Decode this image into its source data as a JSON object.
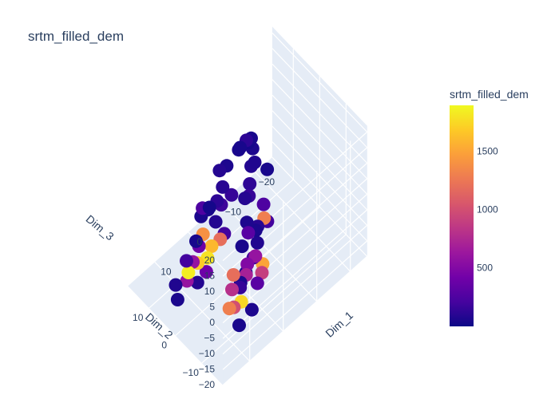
{
  "chart_data": {
    "type": "scatter3d",
    "title": "srtm_filled_dem",
    "colorbar": {
      "title": "srtm_filled_dem",
      "ticks": [
        "500",
        "1000",
        "1500"
      ],
      "tick_values": [
        500,
        1000,
        1500
      ],
      "range": [
        0,
        1900
      ],
      "colorscale": [
        "#0d0887",
        "#46039f",
        "#7201a8",
        "#9c179e",
        "#bd3786",
        "#d8576b",
        "#ed7953",
        "#fb9f3a",
        "#fdca26",
        "#f0f921"
      ]
    },
    "axes": {
      "x": {
        "title": "Dim_1",
        "ticks": [
          "−20",
          "−10",
          "0",
          "10"
        ],
        "tick_values": [
          -20,
          -10,
          0,
          10
        ],
        "range": [
          -25,
          18
        ]
      },
      "y": {
        "title": "Dim_2",
        "ticks": [
          "−10",
          "0",
          "10"
        ],
        "tick_values": [
          -10,
          0,
          10
        ],
        "range": [
          -18,
          18
        ]
      },
      "z": {
        "title": "Dim_3",
        "ticks": [
          "−20",
          "−15",
          "−10",
          "−5",
          "0",
          "5",
          "10",
          "15",
          "20"
        ],
        "tick_values": [
          -20,
          -15,
          -10,
          -5,
          0,
          5,
          10,
          15,
          20
        ],
        "range": [
          -20,
          22
        ]
      }
    },
    "grid": true,
    "legend": "colorbar-right",
    "point_color_range": [
      0,
      1900
    ],
    "points": [
      {
        "x": -5,
        "y": 0,
        "z": 18,
        "c": 60
      },
      {
        "x": -3,
        "y": -2,
        "z": 16,
        "c": 80
      },
      {
        "x": -1,
        "y": -4,
        "z": 14,
        "c": 120
      },
      {
        "x": -7,
        "y": -3,
        "z": 12,
        "c": 40
      },
      {
        "x": 0,
        "y": -5,
        "z": 12,
        "c": 150
      },
      {
        "x": -2,
        "y": -8,
        "z": 10,
        "c": 250
      },
      {
        "x": 2,
        "y": -6,
        "z": 14,
        "c": 90
      },
      {
        "x": 3,
        "y": -8,
        "z": 9,
        "c": 60
      },
      {
        "x": 1,
        "y": -12,
        "z": 12,
        "c": 1300
      },
      {
        "x": 0,
        "y": -12,
        "z": 10,
        "c": 200
      },
      {
        "x": 3,
        "y": -12,
        "z": 6,
        "c": 70
      },
      {
        "x": 6,
        "y": -10,
        "z": 6,
        "c": 45
      },
      {
        "x": -1,
        "y": -7,
        "z": 3,
        "c": 100
      },
      {
        "x": 1,
        "y": -6,
        "z": 2,
        "c": 300
      },
      {
        "x": -2,
        "y": -5,
        "z": -1,
        "c": 50
      },
      {
        "x": 5,
        "y": -13,
        "z": 4,
        "c": 180
      },
      {
        "x": 6,
        "y": -12,
        "z": 2,
        "c": 500
      },
      {
        "x": 8,
        "y": -14,
        "z": 3,
        "c": 40
      },
      {
        "x": 3,
        "y": -14,
        "z": 1,
        "c": 1500
      },
      {
        "x": 4,
        "y": -15,
        "z": 0,
        "c": 900
      },
      {
        "x": 8,
        "y": -12,
        "z": -2,
        "c": 60
      },
      {
        "x": 2,
        "y": -10,
        "z": -1,
        "c": 600
      },
      {
        "x": 7,
        "y": -8,
        "z": -4,
        "c": 1200
      },
      {
        "x": 4,
        "y": -9,
        "z": -6,
        "c": 700
      },
      {
        "x": 9,
        "y": -10,
        "z": -5,
        "c": 800
      },
      {
        "x": 10,
        "y": -12,
        "z": -8,
        "c": 1000
      },
      {
        "x": 7,
        "y": -11,
        "z": -10,
        "c": 1750
      },
      {
        "x": 9,
        "y": -9,
        "z": -12,
        "c": 1300
      },
      {
        "x": 5,
        "y": -8,
        "z": -10,
        "c": 150
      },
      {
        "x": 3,
        "y": -12,
        "z": -7,
        "c": 300
      },
      {
        "x": 7,
        "y": -15,
        "z": -9,
        "c": 60
      },
      {
        "x": 10,
        "y": -14,
        "z": -12,
        "c": 45
      },
      {
        "x": 5,
        "y": -2,
        "z": 2,
        "c": 200
      },
      {
        "x": 7,
        "y": -3,
        "z": 3,
        "c": 1200
      },
      {
        "x": 8,
        "y": -1,
        "z": 0,
        "c": 1600
      },
      {
        "x": 10,
        "y": -2,
        "z": -1,
        "c": 1800
      },
      {
        "x": 6,
        "y": 0,
        "z": 5,
        "c": 80
      },
      {
        "x": 9,
        "y": 1,
        "z": 3,
        "c": 1400
      },
      {
        "x": 11,
        "y": 0,
        "z": 2,
        "c": 400
      },
      {
        "x": 8,
        "y": 3,
        "z": 6,
        "c": 50
      },
      {
        "x": 4,
        "y": 2,
        "z": 8,
        "c": 120
      },
      {
        "x": 6,
        "y": 5,
        "z": 5,
        "c": 250
      },
      {
        "x": 12,
        "y": 1,
        "z": -3,
        "c": 600
      },
      {
        "x": 13,
        "y": -2,
        "z": -6,
        "c": 80
      },
      {
        "x": 9,
        "y": 3,
        "z": -8,
        "c": 1700
      },
      {
        "x": 11,
        "y": 4,
        "z": -10,
        "c": 1850
      },
      {
        "x": 8,
        "y": 1,
        "z": -10,
        "c": 400
      },
      {
        "x": 13,
        "y": 2,
        "z": -9,
        "c": 600
      },
      {
        "x": 14,
        "y": 5,
        "z": -12,
        "c": 70
      },
      {
        "x": 10,
        "y": 6,
        "z": -9,
        "c": 200
      },
      {
        "x": 15,
        "y": 3,
        "z": -14,
        "c": 50
      },
      {
        "x": 2,
        "y": 3,
        "z": 4,
        "c": 180
      },
      {
        "x": 0,
        "y": 5,
        "z": 6,
        "c": 100
      },
      {
        "x": -2,
        "y": 6,
        "z": 10,
        "c": 60
      },
      {
        "x": -6,
        "y": 6,
        "z": 12,
        "c": 40
      },
      {
        "x": -8,
        "y": 3,
        "z": 8,
        "c": 70
      },
      {
        "x": -4,
        "y": 4,
        "z": 15,
        "c": 50
      },
      {
        "x": -10,
        "y": 8,
        "z": 8,
        "c": 30
      },
      {
        "x": -11,
        "y": 10,
        "z": 6,
        "c": 120
      },
      {
        "x": -14,
        "y": 12,
        "z": 2,
        "c": 40
      },
      {
        "x": -3,
        "y": 10,
        "z": 4,
        "c": 90
      },
      {
        "x": 2,
        "y": 8,
        "z": -2,
        "c": 60
      },
      {
        "x": 0,
        "y": 10,
        "z": -5,
        "c": 30
      },
      {
        "x": -5,
        "y": 8,
        "z": -4,
        "c": 150
      },
      {
        "x": 4,
        "y": 10,
        "z": -12,
        "c": 40
      }
    ]
  }
}
